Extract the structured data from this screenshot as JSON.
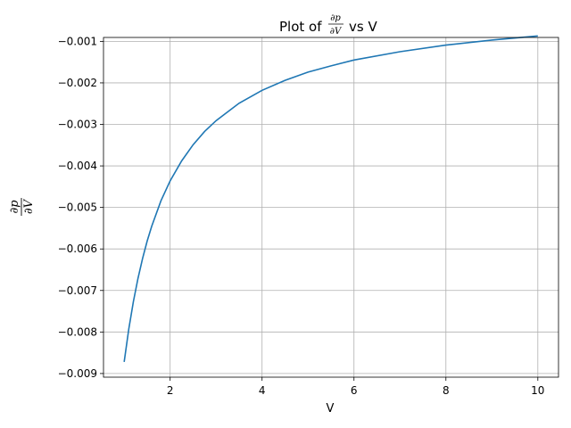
{
  "chart_data": {
    "type": "line",
    "title": {
      "prefix": "Plot of",
      "frac_num": "∂p",
      "frac_den": "∂V",
      "suffix": "vs V"
    },
    "xlabel": "V",
    "ylabel": {
      "frac_num": "∂p",
      "frac_den": "∂V"
    },
    "xlim": [
      0.55,
      10.45
    ],
    "ylim": [
      -0.009088,
      -0.000906
    ],
    "grid": true,
    "x_ticks": [
      {
        "value": 2,
        "label": "2"
      },
      {
        "value": 4,
        "label": "4"
      },
      {
        "value": 6,
        "label": "6"
      },
      {
        "value": 8,
        "label": "8"
      },
      {
        "value": 10,
        "label": "10"
      }
    ],
    "y_ticks": [
      {
        "value": -0.009,
        "label": "−0.009"
      },
      {
        "value": -0.008,
        "label": "−0.008"
      },
      {
        "value": -0.007,
        "label": "−0.007"
      },
      {
        "value": -0.006,
        "label": "−0.006"
      },
      {
        "value": -0.005,
        "label": "−0.005"
      },
      {
        "value": -0.004,
        "label": "−0.004"
      },
      {
        "value": -0.003,
        "label": "−0.003"
      },
      {
        "value": -0.002,
        "label": "−0.002"
      },
      {
        "value": -0.001,
        "label": "−0.001"
      }
    ],
    "series": [
      {
        "color": "#1f77b4",
        "x": [
          1.0,
          1.1,
          1.2,
          1.3,
          1.4,
          1.5,
          1.6,
          1.8,
          2.0,
          2.25,
          2.5,
          2.75,
          3.0,
          3.5,
          4.0,
          4.5,
          5.0,
          5.5,
          6.0,
          7.0,
          8.0,
          9.0,
          10.0
        ],
        "y": [
          -0.00872,
          -0.00793,
          -0.00727,
          -0.00671,
          -0.00623,
          -0.00581,
          -0.00545,
          -0.00484,
          -0.00436,
          -0.00388,
          -0.00349,
          -0.00317,
          -0.00291,
          -0.00249,
          -0.00218,
          -0.00194,
          -0.00174,
          -0.00159,
          -0.00145,
          -0.00125,
          -0.00109,
          -0.00097,
          -0.00087
        ]
      }
    ]
  }
}
